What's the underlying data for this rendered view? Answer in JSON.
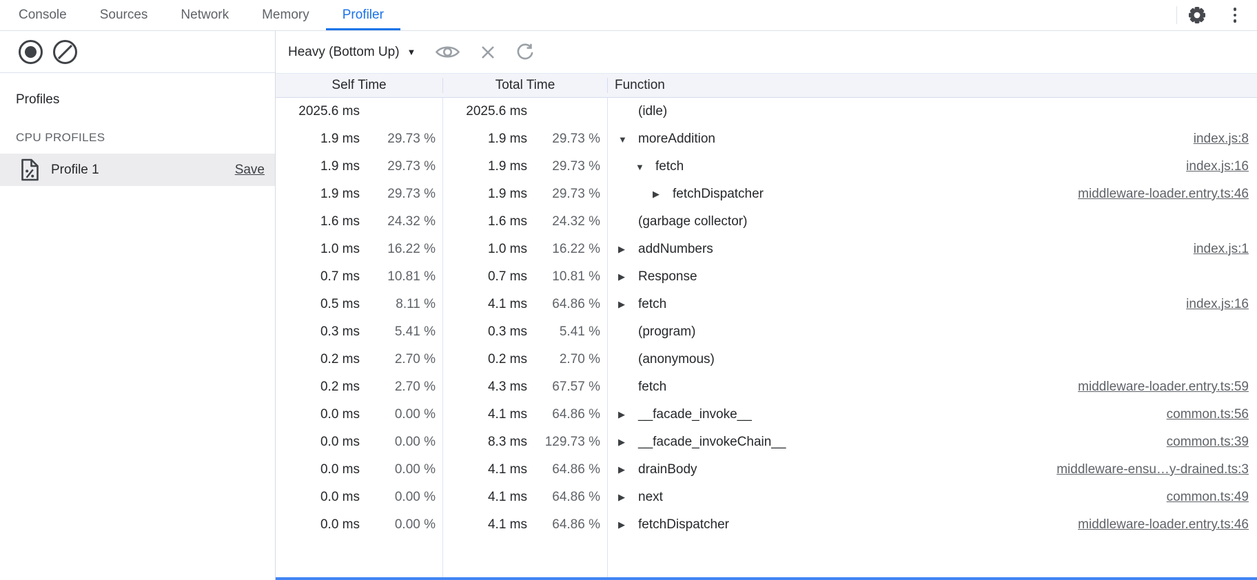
{
  "tabs": {
    "items": [
      {
        "label": "Console",
        "active": false
      },
      {
        "label": "Sources",
        "active": false
      },
      {
        "label": "Network",
        "active": false
      },
      {
        "label": "Memory",
        "active": false
      },
      {
        "label": "Profiler",
        "active": true
      }
    ]
  },
  "toolbar": {
    "view_mode": "Heavy (Bottom Up)"
  },
  "sidebar": {
    "profiles_heading": "Profiles",
    "section_heading": "CPU PROFILES",
    "profile": {
      "name": "Profile 1",
      "save_label": "Save"
    }
  },
  "table": {
    "headers": {
      "self": "Self Time",
      "total": "Total Time",
      "function": "Function"
    },
    "rows": [
      {
        "self_ms": "2025.6 ms",
        "self_pct": "",
        "total_ms": "2025.6 ms",
        "total_pct": "",
        "name": "(idle)",
        "arrow": "none",
        "indent": 0,
        "link": ""
      },
      {
        "self_ms": "1.9 ms",
        "self_pct": "29.73 %",
        "total_ms": "1.9 ms",
        "total_pct": "29.73 %",
        "name": "moreAddition",
        "arrow": "expanded",
        "indent": 0,
        "link": "index.js:8"
      },
      {
        "self_ms": "1.9 ms",
        "self_pct": "29.73 %",
        "total_ms": "1.9 ms",
        "total_pct": "29.73 %",
        "name": "fetch",
        "arrow": "expanded",
        "indent": 1,
        "link": "index.js:16"
      },
      {
        "self_ms": "1.9 ms",
        "self_pct": "29.73 %",
        "total_ms": "1.9 ms",
        "total_pct": "29.73 %",
        "name": "fetchDispatcher",
        "arrow": "collapsed",
        "indent": 2,
        "link": "middleware-loader.entry.ts:46"
      },
      {
        "self_ms": "1.6 ms",
        "self_pct": "24.32 %",
        "total_ms": "1.6 ms",
        "total_pct": "24.32 %",
        "name": "(garbage collector)",
        "arrow": "none",
        "indent": 0,
        "link": ""
      },
      {
        "self_ms": "1.0 ms",
        "self_pct": "16.22 %",
        "total_ms": "1.0 ms",
        "total_pct": "16.22 %",
        "name": "addNumbers",
        "arrow": "collapsed",
        "indent": 0,
        "link": "index.js:1"
      },
      {
        "self_ms": "0.7 ms",
        "self_pct": "10.81 %",
        "total_ms": "0.7 ms",
        "total_pct": "10.81 %",
        "name": "Response",
        "arrow": "collapsed",
        "indent": 0,
        "link": ""
      },
      {
        "self_ms": "0.5 ms",
        "self_pct": "8.11 %",
        "total_ms": "4.1 ms",
        "total_pct": "64.86 %",
        "name": "fetch",
        "arrow": "collapsed",
        "indent": 0,
        "link": "index.js:16"
      },
      {
        "self_ms": "0.3 ms",
        "self_pct": "5.41 %",
        "total_ms": "0.3 ms",
        "total_pct": "5.41 %",
        "name": "(program)",
        "arrow": "none",
        "indent": 0,
        "link": ""
      },
      {
        "self_ms": "0.2 ms",
        "self_pct": "2.70 %",
        "total_ms": "0.2 ms",
        "total_pct": "2.70 %",
        "name": "(anonymous)",
        "arrow": "none",
        "indent": 0,
        "link": ""
      },
      {
        "self_ms": "0.2 ms",
        "self_pct": "2.70 %",
        "total_ms": "4.3 ms",
        "total_pct": "67.57 %",
        "name": "fetch",
        "arrow": "none",
        "indent": 0,
        "link": "middleware-loader.entry.ts:59"
      },
      {
        "self_ms": "0.0 ms",
        "self_pct": "0.00 %",
        "total_ms": "4.1 ms",
        "total_pct": "64.86 %",
        "name": "__facade_invoke__",
        "arrow": "collapsed",
        "indent": 0,
        "link": "common.ts:56"
      },
      {
        "self_ms": "0.0 ms",
        "self_pct": "0.00 %",
        "total_ms": "8.3 ms",
        "total_pct": "129.73 %",
        "name": "__facade_invokeChain__",
        "arrow": "collapsed",
        "indent": 0,
        "link": "common.ts:39"
      },
      {
        "self_ms": "0.0 ms",
        "self_pct": "0.00 %",
        "total_ms": "4.1 ms",
        "total_pct": "64.86 %",
        "name": "drainBody",
        "arrow": "collapsed",
        "indent": 0,
        "link": "middleware-ensu…y-drained.ts:3"
      },
      {
        "self_ms": "0.0 ms",
        "self_pct": "0.00 %",
        "total_ms": "4.1 ms",
        "total_pct": "64.86 %",
        "name": "next",
        "arrow": "collapsed",
        "indent": 0,
        "link": "common.ts:49"
      },
      {
        "self_ms": "0.0 ms",
        "self_pct": "0.00 %",
        "total_ms": "4.1 ms",
        "total_pct": "64.86 %",
        "name": "fetchDispatcher",
        "arrow": "collapsed",
        "indent": 0,
        "link": "middleware-loader.entry.ts:46"
      }
    ]
  },
  "icons": {
    "mode_dropdown_arrow": "▼",
    "tree_expanded": "▼",
    "tree_collapsed": "▶"
  },
  "colors": {
    "accent_blue": "#1a73e8",
    "bottom_bar_blue": "#4285f4",
    "muted_text": "#5f6368",
    "main_text": "#26282b",
    "grid_line": "#dbe2f2",
    "header_bg": "#f2f4f9",
    "selected_row_bg": "#ececee"
  }
}
